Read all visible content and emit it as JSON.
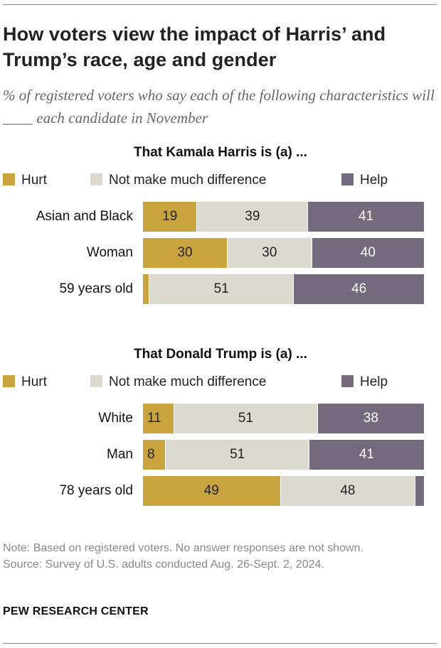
{
  "title": "How voters view the impact of Harris’ and Trump’s race, age and gender",
  "subtitle": "% of registered voters who say each of the following characteristics will ____ each candidate in November",
  "colors": {
    "hurt": "#c9a43e",
    "neutral": "#dcd9ce",
    "help": "#736a7d"
  },
  "chart_data": [
    {
      "type": "bar",
      "stacked": true,
      "orientation": "horizontal",
      "title": "That Kamala Harris is (a) ...",
      "legend": [
        "Hurt",
        "Not make much difference",
        "Help"
      ],
      "categories": [
        "Asian and Black",
        "Woman",
        "59 years old"
      ],
      "series": [
        {
          "name": "Hurt",
          "values": [
            19,
            30,
            2
          ]
        },
        {
          "name": "Not make much difference",
          "values": [
            39,
            30,
            51
          ]
        },
        {
          "name": "Help",
          "values": [
            41,
            40,
            46
          ]
        }
      ]
    },
    {
      "type": "bar",
      "stacked": true,
      "orientation": "horizontal",
      "title": "That Donald Trump is (a) ...",
      "legend": [
        "Hurt",
        "Not make much difference",
        "Help"
      ],
      "categories": [
        "White",
        "Man",
        "78 years old"
      ],
      "series": [
        {
          "name": "Hurt",
          "values": [
            11,
            8,
            49
          ]
        },
        {
          "name": "Not make much difference",
          "values": [
            51,
            51,
            48
          ]
        },
        {
          "name": "Help",
          "values": [
            38,
            41,
            3
          ]
        }
      ]
    }
  ],
  "footer": {
    "note": "Note: Based on registered voters. No answer responses are not shown.",
    "source": "Source: Survey of U.S. adults conducted Aug. 26-Sept. 2, 2024.",
    "organization": "PEW RESEARCH CENTER"
  }
}
